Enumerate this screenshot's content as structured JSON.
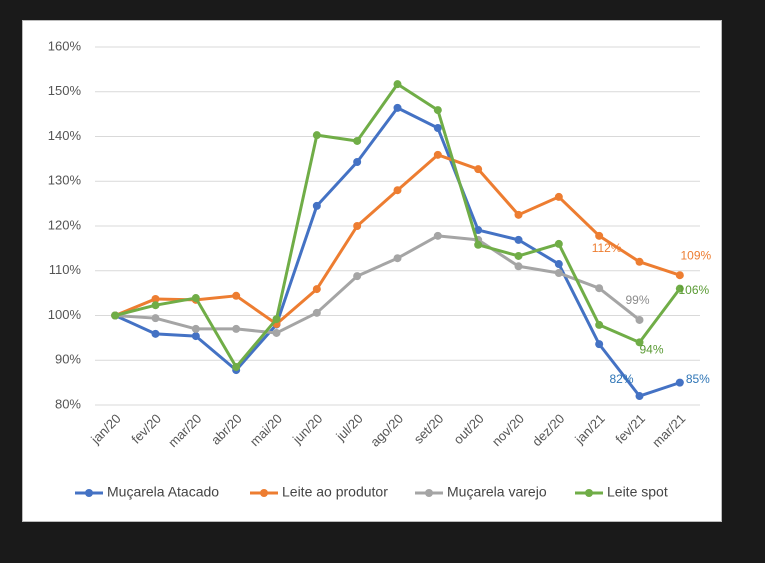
{
  "chart_data": {
    "type": "line",
    "categories": [
      "jan/20",
      "fev/20",
      "mar/20",
      "abr/20",
      "mai/20",
      "jun/20",
      "jul/20",
      "ago/20",
      "set/20",
      "out/20",
      "nov/20",
      "dez/20",
      "jan/21",
      "fev/21",
      "mar/21"
    ],
    "ylim": [
      80,
      160
    ],
    "yticks": [
      {
        "value": 80,
        "label": "80%"
      },
      {
        "value": 90,
        "label": "90%"
      },
      {
        "value": 100,
        "label": "100%"
      },
      {
        "value": 110,
        "label": "110%"
      },
      {
        "value": 120,
        "label": "120%"
      },
      {
        "value": 130,
        "label": "130%"
      },
      {
        "value": 140,
        "label": "140%"
      },
      {
        "value": 150,
        "label": "150%"
      },
      {
        "value": 160,
        "label": "160%"
      }
    ],
    "grid": true,
    "legend": "bottom",
    "series": [
      {
        "name": "Muçarela Atacado",
        "color": "#4472c4",
        "label_color": "#2e75b6",
        "values": [
          100,
          95.9,
          95.4,
          87.8,
          98,
          124.5,
          134.3,
          146.4,
          141.9,
          119.1,
          116.9,
          111.5,
          93.6,
          82,
          85
        ],
        "value_labels": [
          null,
          null,
          null,
          null,
          null,
          null,
          null,
          null,
          null,
          null,
          null,
          null,
          null,
          "82%",
          "85%"
        ]
      },
      {
        "name": "Leite ao produtor",
        "color": "#ed7d31",
        "label_color": "#ed7d31",
        "values": [
          100,
          103.7,
          103.5,
          104.4,
          98.1,
          105.9,
          120,
          128,
          135.9,
          132.7,
          122.5,
          126.5,
          117.8,
          112,
          109
        ],
        "value_labels": [
          null,
          null,
          null,
          null,
          null,
          null,
          null,
          null,
          null,
          null,
          null,
          null,
          null,
          "112%",
          "109%"
        ]
      },
      {
        "name": "Muçarela varejo",
        "color": "#a5a5a5",
        "label_color": "#8c8c8c",
        "values": [
          100,
          99.4,
          97,
          97,
          96.1,
          100.6,
          108.8,
          112.8,
          117.8,
          116.9,
          111,
          109.5,
          106.1,
          99,
          null
        ],
        "value_labels": [
          null,
          null,
          null,
          null,
          null,
          null,
          null,
          null,
          null,
          null,
          null,
          null,
          null,
          "99%",
          null
        ]
      },
      {
        "name": "Leite spot",
        "color": "#70ad47",
        "label_color": "#5a9a34",
        "values": [
          100,
          102.3,
          103.9,
          88.5,
          99.2,
          140.3,
          139,
          151.7,
          145.9,
          115.8,
          113.3,
          116,
          97.9,
          94,
          106
        ],
        "value_labels": [
          null,
          null,
          null,
          null,
          null,
          null,
          null,
          null,
          null,
          null,
          null,
          null,
          null,
          "94%",
          "106%"
        ]
      }
    ]
  }
}
